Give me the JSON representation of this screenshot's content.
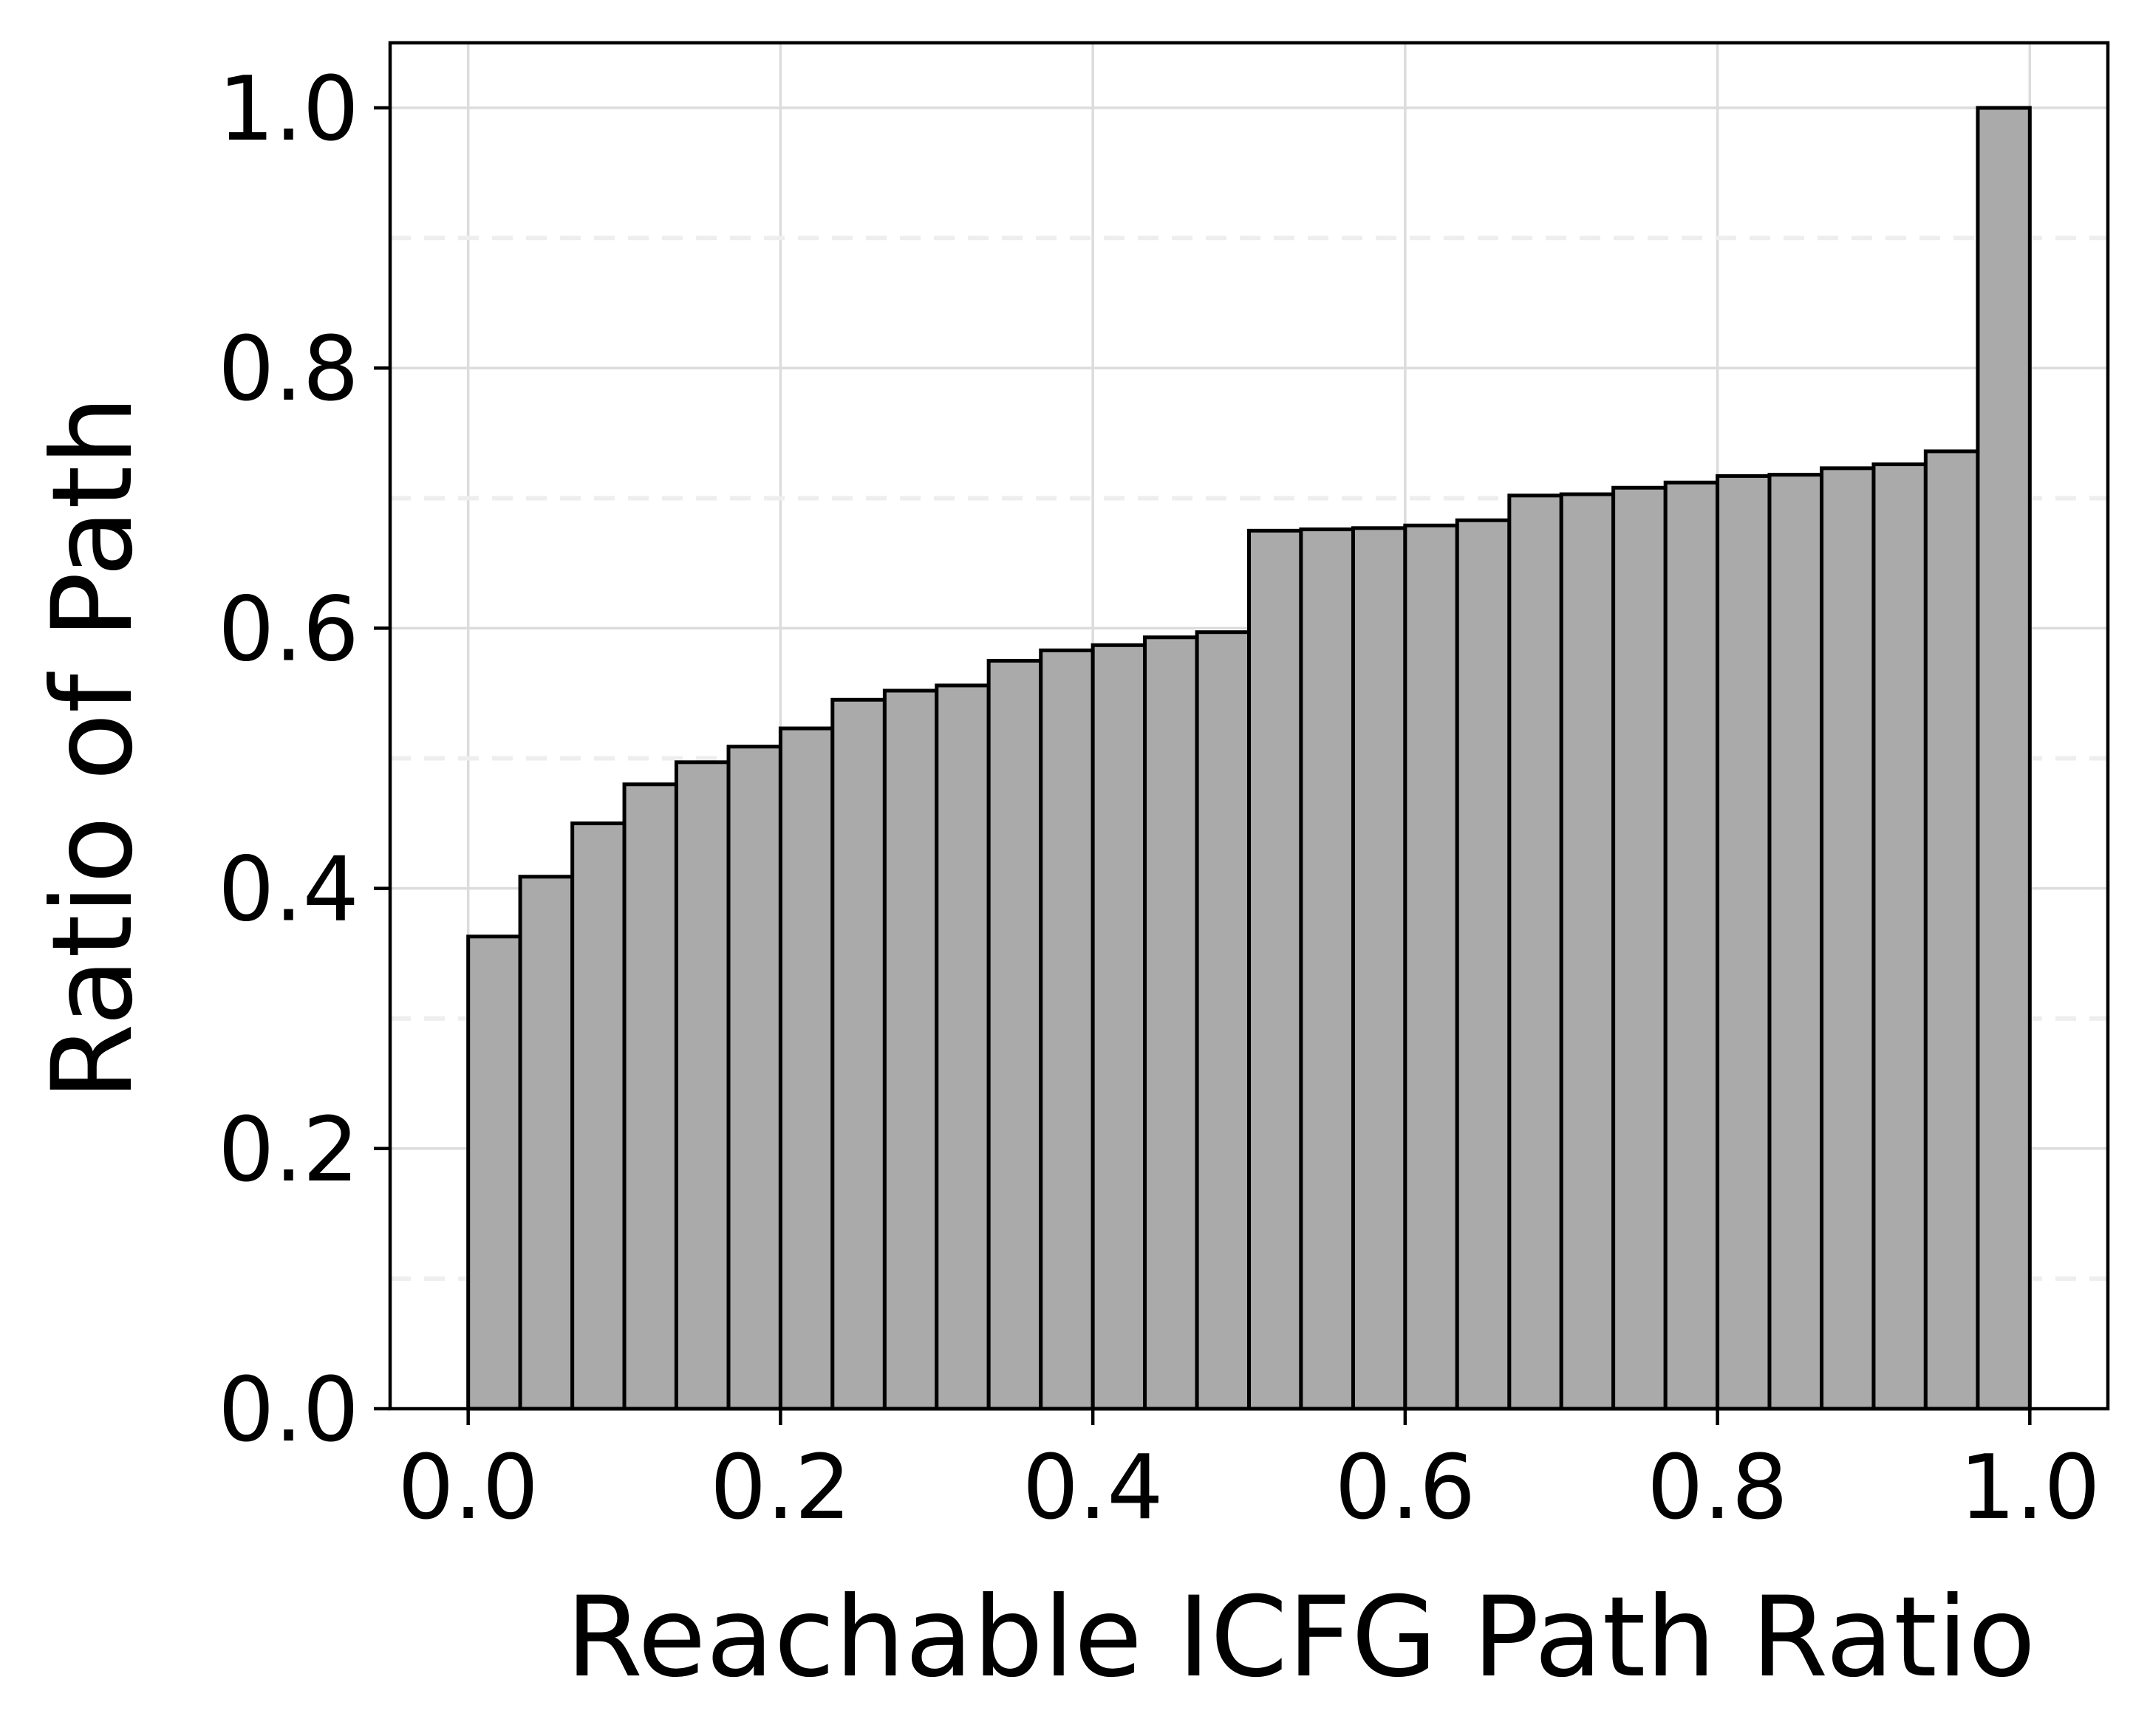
{
  "colors": {
    "bar_fill": "#aaaaaa",
    "bar_edge": "#000000",
    "grid": "#dcdcdc"
  },
  "chart_data": {
    "type": "bar",
    "xlabel": "Reachable ICFG Path Ratio",
    "ylabel": "Ratio of Path",
    "xlim": [
      -0.05,
      1.05
    ],
    "ylim": [
      0.0,
      1.05
    ],
    "grid": true,
    "x_ticks": [
      0.0,
      0.2,
      0.4,
      0.6,
      0.8,
      1.0
    ],
    "y_ticks": [
      0.0,
      0.2,
      0.4,
      0.6,
      0.8,
      1.0
    ],
    "x_tick_labels": [
      "0.0",
      "0.2",
      "0.4",
      "0.6",
      "0.8",
      "1.0"
    ],
    "y_tick_labels": [
      "0.0",
      "0.2",
      "0.4",
      "0.6",
      "0.8",
      "1.0"
    ],
    "bin_edges": [
      0.0,
      0.0333,
      0.0667,
      0.1,
      0.1333,
      0.1667,
      0.2,
      0.2333,
      0.2667,
      0.3,
      0.3333,
      0.3667,
      0.4,
      0.4333,
      0.4667,
      0.5,
      0.5333,
      0.5667,
      0.6,
      0.6333,
      0.6667,
      0.7,
      0.7333,
      0.7667,
      0.8,
      0.8333,
      0.8667,
      0.9,
      0.9333,
      0.9667,
      1.0
    ],
    "values": [
      0.363,
      0.409,
      0.45,
      0.48,
      0.497,
      0.509,
      0.523,
      0.545,
      0.552,
      0.556,
      0.575,
      0.583,
      0.587,
      0.593,
      0.597,
      0.675,
      0.676,
      0.677,
      0.679,
      0.683,
      0.702,
      0.703,
      0.708,
      0.712,
      0.717,
      0.718,
      0.723,
      0.726,
      0.736,
      1.0
    ]
  }
}
